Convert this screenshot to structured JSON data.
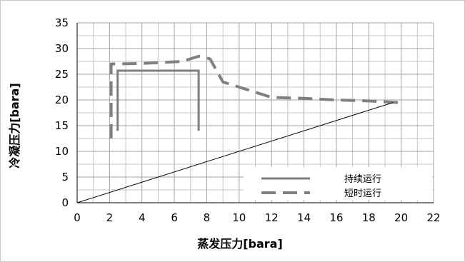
{
  "chart_data": {
    "type": "line",
    "title": "",
    "xlabel": "蒸发压力[bara]",
    "ylabel": "冷凝压力[bara]",
    "xlim": [
      0,
      22
    ],
    "ylim": [
      0,
      35
    ],
    "xticks": [
      0,
      2,
      4,
      6,
      8,
      10,
      12,
      14,
      16,
      18,
      20,
      22
    ],
    "yticks": [
      0,
      5,
      10,
      15,
      20,
      25,
      30,
      35
    ],
    "minor_grid_x": 1,
    "minor_grid_y": 2.5,
    "grid": true,
    "legend_position": "bottom-right",
    "series": [
      {
        "name": "持续运行",
        "style": "solid",
        "color": "#7f7f7f",
        "points": [
          [
            2.5,
            14
          ],
          [
            2.5,
            25.7
          ],
          [
            7.5,
            25.7
          ],
          [
            7.5,
            14
          ]
        ]
      },
      {
        "name": "短时运行",
        "style": "dashed",
        "color": "#808080",
        "points": [
          [
            2.1,
            12.5
          ],
          [
            2.1,
            27
          ],
          [
            4.0,
            27.1
          ],
          [
            6.5,
            27.5
          ],
          [
            7.5,
            28.5
          ],
          [
            8.2,
            28
          ],
          [
            9.0,
            23.5
          ],
          [
            10.0,
            22.5
          ],
          [
            12.0,
            20.5
          ],
          [
            14.0,
            20.3
          ],
          [
            16.0,
            20.0
          ],
          [
            18.0,
            19.8
          ],
          [
            19.8,
            19.5
          ]
        ]
      },
      {
        "name": "",
        "style": "thin",
        "color": "#000000",
        "points": [
          [
            0,
            0
          ],
          [
            19.5,
            19.5
          ]
        ]
      }
    ]
  }
}
